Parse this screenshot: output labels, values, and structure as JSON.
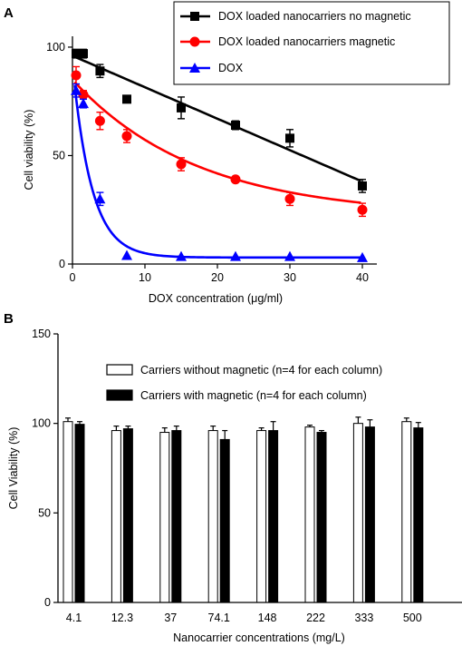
{
  "chart_data": [
    {
      "panel_label": "A",
      "type": "scatter",
      "xlabel": "DOX concentration (μg/ml)",
      "ylabel": "Cell viability (%)",
      "xlim": [
        0,
        42
      ],
      "ylim": [
        0,
        105
      ],
      "xticks": [
        "0",
        "10",
        "20",
        "30",
        "40"
      ],
      "xtick_values": [
        0,
        10,
        20,
        30,
        40
      ],
      "yticks": [
        "0",
        "50",
        "100"
      ],
      "ytick_values": [
        0,
        50,
        100
      ],
      "legend_position": "top-right",
      "fit_lines": true,
      "series": [
        {
          "name": "DOX loaded nanocarriers no magnetic",
          "color": "#000000",
          "marker": "square",
          "points": [
            {
              "x": 0.5,
              "y": 97,
              "err": 2
            },
            {
              "x": 1.5,
              "y": 97,
              "err": 2
            },
            {
              "x": 3.8,
              "y": 89,
              "err": 3
            },
            {
              "x": 7.5,
              "y": 76,
              "err": 0
            },
            {
              "x": 15,
              "y": 72,
              "err": 5
            },
            {
              "x": 22.5,
              "y": 64,
              "err": 2
            },
            {
              "x": 30,
              "y": 58,
              "err": 4
            },
            {
              "x": 40,
              "y": 36,
              "err": 3
            }
          ],
          "fit": {
            "kind": "linear",
            "a": 96,
            "b": -1.45
          }
        },
        {
          "name": "DOX loaded nanocarriers magnetic",
          "color": "#ff0000",
          "marker": "circle",
          "points": [
            {
              "x": 0.5,
              "y": 87,
              "err": 4
            },
            {
              "x": 1.5,
              "y": 78,
              "err": 2
            },
            {
              "x": 3.8,
              "y": 66,
              "err": 4
            },
            {
              "x": 7.5,
              "y": 59,
              "err": 3
            },
            {
              "x": 15,
              "y": 46,
              "err": 3
            },
            {
              "x": 22.5,
              "y": 39,
              "err": 0
            },
            {
              "x": 30,
              "y": 30,
              "err": 3
            },
            {
              "x": 40,
              "y": 25,
              "err": 3
            }
          ],
          "fit": {
            "kind": "exp",
            "plateau": 22,
            "top": 85,
            "k": 0.058
          }
        },
        {
          "name": "DOX",
          "color": "#0000ff",
          "marker": "triangle",
          "points": [
            {
              "x": 0.5,
              "y": 80,
              "err": 3
            },
            {
              "x": 1.5,
              "y": 74,
              "err": 2
            },
            {
              "x": 3.8,
              "y": 30,
              "err": 3
            },
            {
              "x": 7.5,
              "y": 4,
              "err": 0
            },
            {
              "x": 15,
              "y": 3.5,
              "err": 0
            },
            {
              "x": 22.5,
              "y": 3.5,
              "err": 0
            },
            {
              "x": 30,
              "y": 3.5,
              "err": 0
            },
            {
              "x": 40,
              "y": 3,
              "err": 0
            }
          ],
          "fit": {
            "kind": "exp",
            "plateau": 3,
            "top": 92,
            "k": 0.38
          }
        }
      ]
    },
    {
      "panel_label": "B",
      "type": "bar",
      "xlabel": "Nanocarrier concentrations (mg/L)",
      "ylabel": "Cell Viability (%)",
      "ylim": [
        0,
        150
      ],
      "yticks": [
        "0",
        "50",
        "100",
        "150"
      ],
      "ytick_values": [
        0,
        50,
        100,
        150
      ],
      "legend_position": "top-center",
      "categories": [
        "4.1",
        "12.3",
        "37",
        "74.1",
        "148",
        "222",
        "333",
        "500"
      ],
      "series": [
        {
          "name": "Carriers without magnetic (n=4 for each column)",
          "color": "#ffffff",
          "values": [
            101,
            96,
            95,
            96,
            96,
            98,
            100,
            101
          ],
          "errors": [
            2,
            2.5,
            2.5,
            2.5,
            1.5,
            1,
            3.5,
            2
          ]
        },
        {
          "name": "Carriers with magnetic (n=4 for each column)",
          "color": "#000000",
          "values": [
            99.5,
            97,
            96,
            91,
            96,
            95,
            98,
            97.5
          ],
          "errors": [
            1.5,
            1.5,
            2.5,
            5,
            5,
            1,
            4,
            3
          ]
        }
      ]
    }
  ]
}
